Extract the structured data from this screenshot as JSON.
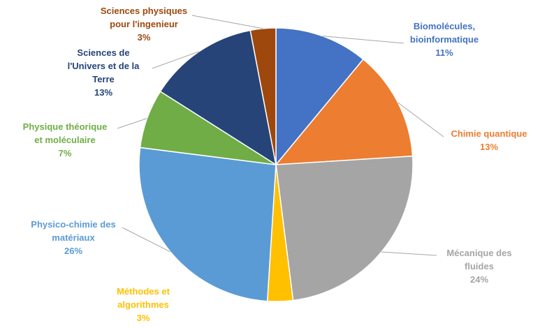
{
  "chart_data": {
    "type": "pie",
    "title": "",
    "legend": "none",
    "slices": [
      {
        "name_lines": [
          "Biomolécules,",
          "bioinformatique"
        ],
        "value": 11,
        "value_label": "11%",
        "color": "#4472C4"
      },
      {
        "name_lines": [
          "Chimie quantique"
        ],
        "value": 13,
        "value_label": "13%",
        "color": "#ED7D31"
      },
      {
        "name_lines": [
          "Mécanique des",
          "fluides"
        ],
        "value": 24,
        "value_label": "24%",
        "color": "#A5A5A5"
      },
      {
        "name_lines": [
          "Méthodes et",
          "algorithmes"
        ],
        "value": 3,
        "value_label": "3%",
        "color": "#FFC000"
      },
      {
        "name_lines": [
          "Physico-chimie des",
          "matériaux"
        ],
        "value": 26,
        "value_label": "26%",
        "color": "#5B9BD5"
      },
      {
        "name_lines": [
          "Physique théorique",
          "et moléculaire"
        ],
        "value": 7,
        "value_label": "7%",
        "color": "#70AD47"
      },
      {
        "name_lines": [
          "Sciences de",
          "l'Univers et de la",
          "Terre"
        ],
        "value": 13,
        "value_label": "13%",
        "color": "#264478"
      },
      {
        "name_lines": [
          "Sciences physiques",
          "pour l'ingenieur"
        ],
        "value": 3,
        "value_label": "3%",
        "color": "#9E480E"
      }
    ]
  }
}
